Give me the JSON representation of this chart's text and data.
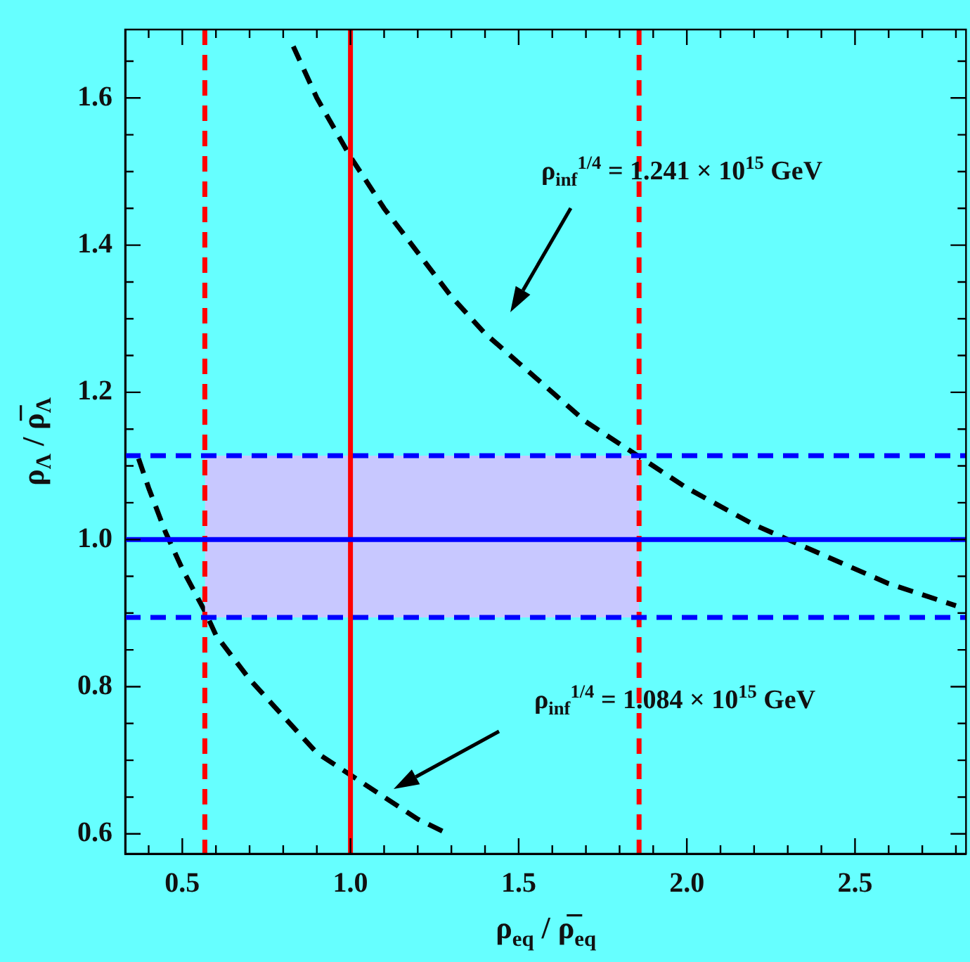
{
  "chart_data": {
    "type": "line",
    "xlabel": "ρ$_{eq}$ / ρ̅$_{eq}$",
    "ylabel": "ρ$_{Λ}$ / ρ̅$_{Λ}$",
    "xlim": [
      0.33,
      2.83
    ],
    "ylim": [
      0.573,
      1.693
    ],
    "xticks": [
      {
        "value": 0.4,
        "label": null
      },
      {
        "value": 0.5,
        "label": "0.5"
      },
      {
        "value": 0.6,
        "label": null
      },
      {
        "value": 0.7,
        "label": null
      },
      {
        "value": 0.8,
        "label": null
      },
      {
        "value": 0.9,
        "label": null
      },
      {
        "value": 1.0,
        "label": "1.0"
      },
      {
        "value": 1.1,
        "label": null
      },
      {
        "value": 1.2,
        "label": null
      },
      {
        "value": 1.3,
        "label": null
      },
      {
        "value": 1.4,
        "label": null
      },
      {
        "value": 1.5,
        "label": "1.5"
      },
      {
        "value": 1.6,
        "label": null
      },
      {
        "value": 1.7,
        "label": null
      },
      {
        "value": 1.8,
        "label": null
      },
      {
        "value": 1.9,
        "label": null
      },
      {
        "value": 2.0,
        "label": "2.0"
      },
      {
        "value": 2.1,
        "label": null
      },
      {
        "value": 2.2,
        "label": null
      },
      {
        "value": 2.3,
        "label": null
      },
      {
        "value": 2.4,
        "label": null
      },
      {
        "value": 2.5,
        "label": "2.5"
      },
      {
        "value": 2.6,
        "label": null
      },
      {
        "value": 2.7,
        "label": null
      },
      {
        "value": 2.8,
        "label": null
      }
    ],
    "yticks": [
      {
        "value": 0.6,
        "label": "0.6"
      },
      {
        "value": 0.65,
        "label": null
      },
      {
        "value": 0.7,
        "label": null
      },
      {
        "value": 0.75,
        "label": null
      },
      {
        "value": 0.8,
        "label": "0.8"
      },
      {
        "value": 0.85,
        "label": null
      },
      {
        "value": 0.9,
        "label": null
      },
      {
        "value": 0.95,
        "label": null
      },
      {
        "value": 1.0,
        "label": "1.0"
      },
      {
        "value": 1.05,
        "label": null
      },
      {
        "value": 1.1,
        "label": null
      },
      {
        "value": 1.15,
        "label": null
      },
      {
        "value": 1.2,
        "label": "1.2"
      },
      {
        "value": 1.25,
        "label": null
      },
      {
        "value": 1.3,
        "label": null
      },
      {
        "value": 1.35,
        "label": null
      },
      {
        "value": 1.4,
        "label": "1.4"
      },
      {
        "value": 1.45,
        "label": null
      },
      {
        "value": 1.5,
        "label": null
      },
      {
        "value": 1.55,
        "label": null
      },
      {
        "value": 1.6,
        "label": "1.6"
      },
      {
        "value": 1.65,
        "label": null
      }
    ],
    "marker": "none",
    "series": [
      {
        "color": "#c8c8ff",
        "x": [
          0.567,
          1.858
        ],
        "values": [
          null,
          null
        ],
        "lower": [
          0.894,
          0.894
        ],
        "upper": [
          1.114,
          1.114
        ]
      },
      {
        "color": "#000000",
        "line_style": "dashed",
        "x": [
          0.83,
          0.9,
          1.0,
          1.1,
          1.2,
          1.3,
          1.4,
          1.5,
          1.6,
          1.7,
          1.8,
          1.9,
          2.0,
          2.2,
          2.4,
          2.6,
          2.8
        ],
        "values": [
          1.67,
          1.6,
          1.52,
          1.45,
          1.39,
          1.33,
          1.28,
          1.24,
          1.2,
          1.16,
          1.13,
          1.1,
          1.07,
          1.02,
          0.98,
          0.94,
          0.91
        ]
      },
      {
        "color": "#000000",
        "line_style": "dashed",
        "x": [
          0.37,
          0.4,
          0.45,
          0.5,
          0.57,
          0.6,
          0.7,
          0.8,
          0.9,
          1.0,
          1.1,
          1.2,
          1.29
        ],
        "values": [
          1.11,
          1.07,
          1.01,
          0.96,
          0.9,
          0.87,
          0.81,
          0.76,
          0.71,
          0.68,
          0.65,
          0.62,
          0.6
        ]
      }
    ],
    "ref_lines": [
      {
        "axis": "x",
        "value": 1.0,
        "color": "#ff0000",
        "line_style": "solid"
      },
      {
        "axis": "x",
        "value": 0.567,
        "color": "#ff0000",
        "line_style": "dashed"
      },
      {
        "axis": "x",
        "value": 1.858,
        "color": "#ff0000",
        "line_style": "dashed"
      },
      {
        "axis": "y",
        "value": 1.0,
        "color": "#0000ff",
        "line_style": "solid"
      },
      {
        "axis": "y",
        "value": 1.114,
        "color": "#0000ff",
        "line_style": "dashed"
      },
      {
        "axis": "y",
        "value": 0.894,
        "color": "#0000ff",
        "line_style": "dashed"
      }
    ],
    "annotations": [
      "ρ$_{inf}$$^{1/4}$ = 1.241 × 10$^{15}$ GeV",
      "ρ$_{inf}$$^{1/4}$ = 1.084 × 10$^{15}$ GeV"
    ]
  }
}
